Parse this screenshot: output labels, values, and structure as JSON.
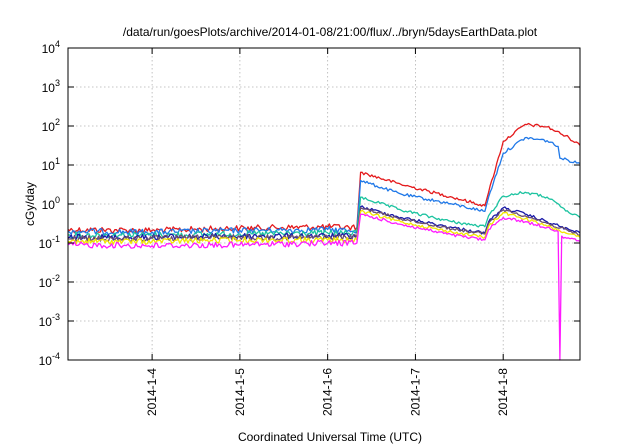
{
  "chart_data": {
    "type": "line",
    "title": "/data/run/goesPlots/archive/2014-01-08/21:00/flux/../bryn/5daysEarthData.plot",
    "xlabel": "Coordinated Universal Time (UTC)",
    "ylabel": "cGy/day",
    "y_scale": "log",
    "ylim": [
      0.0001,
      10000
    ],
    "y_tick_labels": [
      {
        "base": "10",
        "exp": "-4"
      },
      {
        "base": "10",
        "exp": "-3"
      },
      {
        "base": "10",
        "exp": "-2"
      },
      {
        "base": "10",
        "exp": "-1"
      },
      {
        "base": "10",
        "exp": "0"
      },
      {
        "base": "10",
        "exp": "1"
      },
      {
        "base": "10",
        "exp": "2"
      },
      {
        "base": "10",
        "exp": "3"
      },
      {
        "base": "10",
        "exp": "4"
      }
    ],
    "xlim": [
      "2014-01-03T01:00",
      "2014-01-08T21:00"
    ],
    "x_ticks": [
      "2014-1-4",
      "2014-1-5",
      "2014-1-6",
      "2014-1-7",
      "2014-1-8"
    ],
    "grid": true,
    "series": [
      {
        "color": "#e41a1c",
        "x": [
          "2014-01-03T01:00",
          "2014-01-04T00:00",
          "2014-01-05T00:00",
          "2014-01-06T00:00",
          "2014-01-06T08:00",
          "2014-01-06T09:00",
          "2014-01-06T20:00",
          "2014-01-07T10:00",
          "2014-01-07T19:00",
          "2014-01-07T20:00",
          "2014-01-08T00:00",
          "2014-01-08T06:00",
          "2014-01-08T12:00",
          "2014-01-08T18:00",
          "2014-01-08T21:00"
        ],
        "y": [
          0.22,
          0.21,
          0.24,
          0.26,
          0.25,
          6.5,
          3.2,
          1.5,
          0.9,
          2.0,
          40,
          110,
          95,
          50,
          32
        ]
      },
      {
        "color": "#1f78e8",
        "x": [
          "2014-01-03T01:00",
          "2014-01-04T00:00",
          "2014-01-05T00:00",
          "2014-01-06T00:00",
          "2014-01-06T08:00",
          "2014-01-06T09:00",
          "2014-01-06T20:00",
          "2014-01-07T10:00",
          "2014-01-07T19:00",
          "2014-01-07T20:00",
          "2014-01-08T00:00",
          "2014-01-08T06:00",
          "2014-01-08T12:00",
          "2014-01-08T15:00",
          "2014-01-08T15:30",
          "2014-01-08T21:00"
        ],
        "y": [
          0.2,
          0.19,
          0.21,
          0.22,
          0.21,
          4.0,
          1.8,
          1.0,
          0.65,
          1.5,
          20,
          50,
          42,
          30,
          15,
          11
        ]
      },
      {
        "color": "#1cc3a0",
        "x": [
          "2014-01-03T01:00",
          "2014-01-04T00:00",
          "2014-01-05T00:00",
          "2014-01-06T00:00",
          "2014-01-06T08:00",
          "2014-01-06T09:00",
          "2014-01-06T20:00",
          "2014-01-07T10:00",
          "2014-01-07T19:00",
          "2014-01-07T20:00",
          "2014-01-08T00:00",
          "2014-01-08T06:00",
          "2014-01-08T12:00",
          "2014-01-08T18:00",
          "2014-01-08T21:00"
        ],
        "y": [
          0.16,
          0.16,
          0.17,
          0.18,
          0.18,
          1.5,
          0.7,
          0.35,
          0.26,
          0.5,
          1.6,
          2.0,
          1.5,
          0.6,
          0.45
        ]
      },
      {
        "color": "#1a1aa8",
        "x": [
          "2014-01-03T01:00",
          "2014-01-04T00:00",
          "2014-01-05T00:00",
          "2014-01-06T00:00",
          "2014-01-06T08:00",
          "2014-01-06T09:00",
          "2014-01-06T20:00",
          "2014-01-07T10:00",
          "2014-01-07T19:00",
          "2014-01-07T20:00",
          "2014-01-08T00:00",
          "2014-01-08T06:00",
          "2014-01-08T12:00",
          "2014-01-08T18:00",
          "2014-01-08T21:00"
        ],
        "y": [
          0.14,
          0.14,
          0.15,
          0.15,
          0.15,
          0.85,
          0.45,
          0.25,
          0.18,
          0.35,
          0.8,
          0.55,
          0.35,
          0.22,
          0.18
        ]
      },
      {
        "color": "#6b4e71",
        "x": [
          "2014-01-03T01:00",
          "2014-01-04T00:00",
          "2014-01-05T00:00",
          "2014-01-06T00:00",
          "2014-01-06T08:00",
          "2014-01-06T09:00",
          "2014-01-06T20:00",
          "2014-01-07T10:00",
          "2014-01-07T19:00",
          "2014-01-07T20:00",
          "2014-01-08T00:00",
          "2014-01-08T06:00",
          "2014-01-08T12:00",
          "2014-01-08T18:00",
          "2014-01-08T21:00"
        ],
        "y": [
          0.13,
          0.13,
          0.14,
          0.14,
          0.14,
          0.8,
          0.42,
          0.23,
          0.17,
          0.32,
          0.72,
          0.5,
          0.32,
          0.2,
          0.16
        ]
      },
      {
        "color": "#f2e600",
        "x": [
          "2014-01-03T01:00",
          "2014-01-04T00:00",
          "2014-01-05T00:00",
          "2014-01-06T00:00",
          "2014-01-06T08:00",
          "2014-01-06T09:00",
          "2014-01-06T20:00",
          "2014-01-07T10:00",
          "2014-01-07T19:00",
          "2014-01-07T20:00",
          "2014-01-08T00:00",
          "2014-01-08T06:00",
          "2014-01-08T12:00",
          "2014-01-08T18:00",
          "2014-01-08T21:00"
        ],
        "y": [
          0.11,
          0.11,
          0.12,
          0.12,
          0.12,
          0.65,
          0.35,
          0.19,
          0.14,
          0.27,
          0.6,
          0.42,
          0.27,
          0.17,
          0.14
        ]
      },
      {
        "color": "#ff1aff",
        "x": [
          "2014-01-03T01:00",
          "2014-01-04T00:00",
          "2014-01-05T00:00",
          "2014-01-06T00:00",
          "2014-01-06T08:00",
          "2014-01-06T09:00",
          "2014-01-06T20:00",
          "2014-01-07T10:00",
          "2014-01-07T19:00",
          "2014-01-07T20:00",
          "2014-01-08T00:00",
          "2014-01-08T06:00",
          "2014-01-08T12:00",
          "2014-01-08T15:00",
          "2014-01-08T15:30",
          "2014-01-08T16:00",
          "2014-01-08T21:00"
        ],
        "y": [
          0.09,
          0.085,
          0.09,
          0.1,
          0.1,
          0.55,
          0.3,
          0.16,
          0.12,
          0.22,
          0.45,
          0.35,
          0.25,
          0.2,
          0.0001,
          0.15,
          0.11
        ]
      }
    ]
  }
}
